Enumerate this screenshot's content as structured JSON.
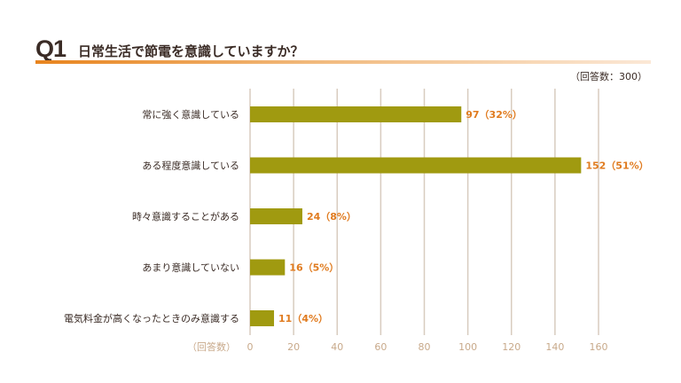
{
  "header": {
    "q_number": "Q1",
    "question": "日常生活で節電を意識していますか？",
    "respondents": "（回答数：300）"
  },
  "chart_data": {
    "type": "bar",
    "orientation": "horizontal",
    "title": "日常生活で節電を意識していますか？",
    "xlabel": "（回答数）",
    "xlim": [
      0,
      160
    ],
    "xticks": [
      0,
      20,
      40,
      60,
      80,
      100,
      120,
      140,
      160
    ],
    "grid": true,
    "bar_color": "#a09a10",
    "label_color": "#e07b1f",
    "categories": [
      "常に強く意識している",
      "ある程度意識している",
      "時々意識することがある",
      "あまり意識していない",
      "電気料金が高くなったときのみ意識する"
    ],
    "values": [
      97,
      152,
      24,
      16,
      11
    ],
    "data_labels": [
      "97（32%）",
      "152（51%）",
      "24（8%）",
      "16（5%）",
      "11（4%）"
    ]
  }
}
